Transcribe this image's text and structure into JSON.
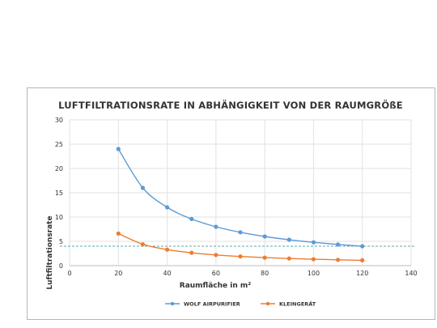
{
  "chart_data": {
    "type": "line",
    "title": "LUFTFILTRATIONSRATE IN ABHÄNGIGKEIT VON DER RAUMGRÖßE",
    "xlabel": "Raumfläche in m²",
    "ylabel": "Luftfiltrationsrate",
    "xlim": [
      0,
      140
    ],
    "ylim": [
      0,
      30
    ],
    "x_ticks": [
      0,
      20,
      40,
      60,
      80,
      100,
      120,
      140
    ],
    "y_ticks": [
      0,
      5,
      10,
      15,
      20,
      25,
      30
    ],
    "grid": true,
    "legend_position": "bottom",
    "reference_line": {
      "y": 4,
      "style": "dashed",
      "color": "#5aa9a8"
    },
    "series": [
      {
        "name": "WOLF AIRPURIFIER",
        "color": "#5b9bd5",
        "x": [
          20,
          30,
          40,
          50,
          60,
          70,
          80,
          90,
          100,
          110,
          120
        ],
        "values": [
          24,
          16,
          12,
          9.6,
          8,
          6.86,
          6,
          5.33,
          4.8,
          4.36,
          4
        ]
      },
      {
        "name": "KLEINGERÄT",
        "color": "#ed7d31",
        "x": [
          20,
          30,
          40,
          50,
          60,
          70,
          80,
          90,
          100,
          110,
          120
        ],
        "values": [
          6.6,
          4.4,
          3.3,
          2.64,
          2.2,
          1.89,
          1.65,
          1.47,
          1.32,
          1.2,
          1.1
        ]
      }
    ]
  }
}
